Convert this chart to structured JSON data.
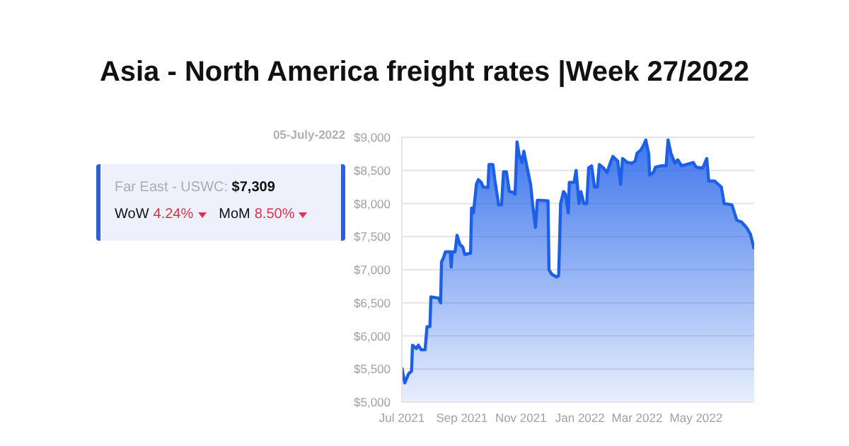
{
  "chart_data": {
    "type": "area",
    "title": "Asia - North America freight rates |Week 27/2022",
    "annotations": [
      "05-July-2022",
      "Far East - USWC:",
      "$7,309",
      "WoW",
      "4.24%",
      "MoM",
      "8.50%"
    ],
    "x": [
      "2021-07-01",
      "2021-07-04",
      "2021-07-08",
      "2021-07-11",
      "2021-07-12",
      "2021-07-16",
      "2021-07-18",
      "2021-07-21",
      "2021-07-25",
      "2021-07-27",
      "2021-07-30",
      "2021-07-31",
      "2021-08-08",
      "2021-08-10",
      "2021-08-11",
      "2021-08-13",
      "2021-08-15",
      "2021-08-20",
      "2021-08-21",
      "2021-08-22",
      "2021-08-25",
      "2021-08-27",
      "2021-08-30",
      "2021-09-02",
      "2021-09-04",
      "2021-09-10",
      "2021-09-11",
      "2021-09-13",
      "2021-09-16",
      "2021-09-18",
      "2021-09-21",
      "2021-09-23",
      "2021-09-28",
      "2021-09-29",
      "2021-10-03",
      "2021-10-05",
      "2021-10-09",
      "2021-10-12",
      "2021-10-14",
      "2021-10-17",
      "2021-10-20",
      "2021-10-24",
      "2021-10-26",
      "2021-10-28",
      "2021-10-30",
      "2021-11-02",
      "2021-11-04",
      "2021-11-07",
      "2021-11-11",
      "2021-11-13",
      "2021-11-16",
      "2021-11-18",
      "2021-11-20",
      "2021-11-29",
      "2021-11-30",
      "2021-12-03",
      "2021-12-08",
      "2021-12-10",
      "2021-12-12",
      "2021-12-15",
      "2021-12-17",
      "2021-12-20",
      "2021-12-21",
      "2021-12-26",
      "2021-12-28",
      "2021-12-31",
      "2022-01-02",
      "2022-01-05",
      "2022-01-08",
      "2022-01-10",
      "2022-01-13",
      "2022-01-16",
      "2022-01-19",
      "2022-01-21",
      "2022-01-25",
      "2022-01-29",
      "2022-02-02",
      "2022-02-04",
      "2022-02-09",
      "2022-02-12",
      "2022-02-14",
      "2022-02-19",
      "2022-02-24",
      "2022-02-27",
      "2022-03-01",
      "2022-03-05",
      "2022-03-08",
      "2022-03-10",
      "2022-03-13",
      "2022-03-14",
      "2022-03-18",
      "2022-03-20",
      "2022-03-26",
      "2022-03-31",
      "2022-04-02",
      "2022-04-05",
      "2022-04-09",
      "2022-04-12",
      "2022-04-16",
      "2022-04-21",
      "2022-04-28",
      "2022-05-01",
      "2022-05-05",
      "2022-05-08",
      "2022-05-12",
      "2022-05-14",
      "2022-05-20",
      "2022-05-27",
      "2022-05-30",
      "2022-06-07",
      "2022-06-12",
      "2022-06-17",
      "2022-06-22",
      "2022-06-26",
      "2022-06-30"
    ],
    "series": [
      {
        "color": "#1d5fe8",
        "values": [
          5520,
          5290,
          5430,
          5470,
          5860,
          5810,
          5860,
          5790,
          5790,
          6140,
          6140,
          6590,
          6570,
          6500,
          7120,
          7180,
          7270,
          7270,
          7040,
          7270,
          7270,
          7520,
          7380,
          7340,
          7230,
          7250,
          7930,
          7860,
          8290,
          8360,
          8320,
          8250,
          8240,
          8590,
          8590,
          8360,
          7980,
          7980,
          8480,
          8480,
          8180,
          8170,
          8140,
          8930,
          8750,
          8620,
          8790,
          8570,
          8290,
          8000,
          7640,
          8050,
          8050,
          8040,
          7000,
          6930,
          6890,
          6910,
          8000,
          8180,
          8140,
          7860,
          8320,
          8320,
          8500,
          8000,
          8180,
          8000,
          8000,
          8540,
          8570,
          8250,
          8250,
          8590,
          8540,
          8470,
          8640,
          8710,
          8640,
          8290,
          8680,
          8620,
          8610,
          8640,
          8760,
          8810,
          8890,
          8960,
          8750,
          8430,
          8470,
          8550,
          8570,
          8570,
          8960,
          8760,
          8610,
          8660,
          8570,
          8590,
          8620,
          8550,
          8540,
          8540,
          8680,
          8340,
          8340,
          8250,
          8000,
          7980,
          7750,
          7720,
          7640,
          7540,
          7310
        ]
      }
    ],
    "xlim": [
      "2021-07-01",
      "2022-06-30"
    ],
    "xticks": [
      {
        "value": "2021-07-01",
        "label": "Jul 2021"
      },
      {
        "value": "2021-09-01",
        "label": "Sep 2021"
      },
      {
        "value": "2021-11-01",
        "label": "Nov 2021"
      },
      {
        "value": "2022-01-01",
        "label": "Jan 2022"
      },
      {
        "value": "2022-03-01",
        "label": "Mar 2022"
      },
      {
        "value": "2022-05-01",
        "label": "May 2022"
      }
    ],
    "ylim": [
      5000,
      9000
    ],
    "yticks": [
      {
        "value": 5000,
        "label": "$5,000"
      },
      {
        "value": 5500,
        "label": "$5,500"
      },
      {
        "value": 6000,
        "label": "$6,000"
      },
      {
        "value": 6500,
        "label": "$6,500"
      },
      {
        "value": 7000,
        "label": "$7,000"
      },
      {
        "value": 7500,
        "label": "$7,500"
      },
      {
        "value": 8000,
        "label": "$8,000"
      },
      {
        "value": 8500,
        "label": "$8,500"
      },
      {
        "value": 9000,
        "label": "$9,000"
      }
    ],
    "grid": "y",
    "legend": false,
    "marker": "none",
    "line_style": "solid"
  }
}
